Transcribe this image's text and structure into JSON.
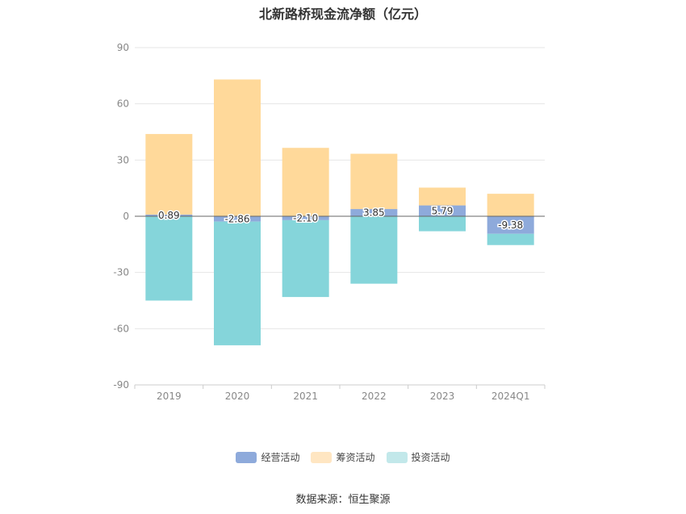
{
  "chart_data": {
    "type": "bar",
    "stacked": true,
    "title": "北新路桥现金流净额（亿元）",
    "categories": [
      "2019",
      "2020",
      "2021",
      "2022",
      "2023",
      "2024Q1"
    ],
    "ylim": [
      -90,
      90
    ],
    "yticks": [
      90,
      60,
      30,
      0,
      -30,
      -60,
      -90
    ],
    "grid": true,
    "legend_position": "bottom",
    "series": [
      {
        "name": "经营活动",
        "color": "#8eaadb",
        "values": [
          0.89,
          -2.86,
          -2.1,
          3.85,
          5.79,
          -9.38
        ]
      },
      {
        "name": "筹资活动",
        "color": "#ffd99a",
        "values": [
          43,
          73,
          36.5,
          29.5,
          9.5,
          12
        ]
      },
      {
        "name": "投资活动",
        "color": "#85d5da",
        "values": [
          -45,
          -66,
          -41,
          -36,
          -8,
          -6
        ]
      }
    ],
    "data_labels": [
      "0.89",
      "-2.86",
      "-2.10",
      "3.85",
      "5.79",
      "-9.38"
    ],
    "source": "数据来源：恒生聚源"
  },
  "legend_swatch_colors": [
    "#8eaadb",
    "#ffe6c2",
    "#c2e8ea"
  ]
}
